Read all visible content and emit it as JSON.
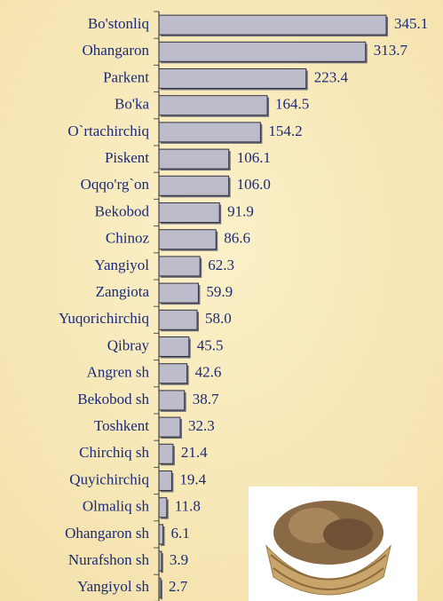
{
  "chart_data": {
    "type": "barh",
    "categories": [
      "Bo'stonliq",
      "Ohangaron",
      "Parkent",
      "Bo'ka",
      "O`rtachirchiq",
      "Piskent",
      "Oqqo'rg`on",
      "Bekobod",
      "Chinoz",
      "Yangiyol",
      "Zangiota",
      "Yuqorichirchiq",
      "Qibray",
      "Angren sh",
      "Bekobod sh",
      "Toshkent",
      "Chirchiq sh",
      "Quyichirchiq",
      "Olmaliq sh",
      "Ohangaron sh",
      "Nurafshon sh",
      "Yangiyol sh"
    ],
    "values": [
      345.1,
      313.7,
      223.4,
      164.5,
      154.2,
      106.1,
      106.0,
      91.9,
      86.6,
      62.3,
      59.9,
      58.0,
      45.5,
      42.6,
      38.7,
      32.3,
      21.4,
      19.4,
      11.8,
      6.1,
      3.9,
      2.7
    ],
    "value_labels": [
      "345.1",
      "313.7",
      "223.4",
      "164.5",
      "154.2",
      "106.1",
      "106.0",
      "91.9",
      "86.6",
      "62.3",
      "59.9",
      "58.0",
      "45.5",
      "42.6",
      "38.7",
      "32.3",
      "21.4",
      "19.4",
      "11.8",
      "6.1",
      "3.9",
      "2.7"
    ],
    "color": "#bcbccb"
  }
}
